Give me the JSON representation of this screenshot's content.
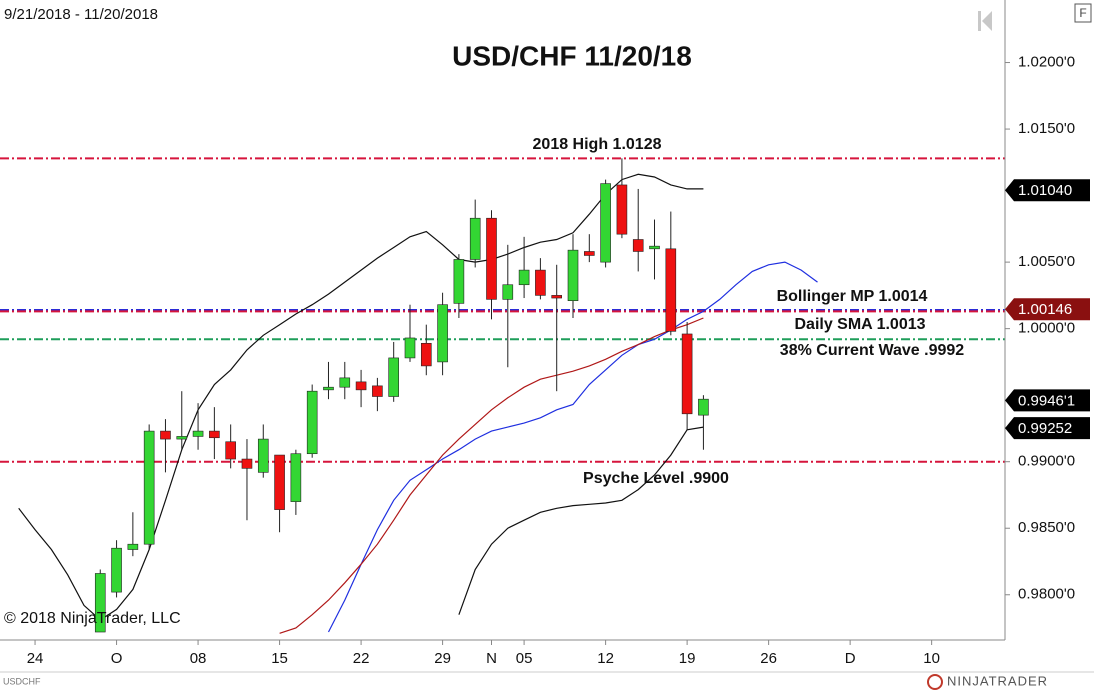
{
  "chart_data": {
    "type": "candlestick",
    "title": "USD/CHF 11/20/18",
    "date_range": "9/21/2018 - 11/20/2018",
    "copyright": "© 2018 NinjaTrader, LLC",
    "symbol": "USDCHF",
    "brand": "NINJATRADER",
    "button": "F",
    "xlim": [
      -2.15,
      59.5
    ],
    "ylim": [
      0.9766,
      1.0247
    ],
    "xticks": [
      {
        "value": 0,
        "label": "24"
      },
      {
        "value": 5,
        "label": "O"
      },
      {
        "value": 10,
        "label": "08"
      },
      {
        "value": 15,
        "label": "15"
      },
      {
        "value": 20,
        "label": "22"
      },
      {
        "value": 25,
        "label": "29"
      },
      {
        "value": 28,
        "label": "N"
      },
      {
        "value": 30,
        "label": "05"
      },
      {
        "value": 35,
        "label": "12"
      },
      {
        "value": 40,
        "label": "19"
      },
      {
        "value": 45,
        "label": "26"
      },
      {
        "value": 50,
        "label": "D"
      },
      {
        "value": 55,
        "label": "10"
      }
    ],
    "yticks": [
      {
        "value": 1.02,
        "label": "1.0200'0"
      },
      {
        "value": 1.015,
        "label": "1.0150'0"
      },
      {
        "value": 1.005,
        "label": "1.0050'0"
      },
      {
        "value": 1.0,
        "label": "1.0000'0"
      },
      {
        "value": 0.99,
        "label": "0.9900'0"
      },
      {
        "value": 0.985,
        "label": "0.9850'0"
      },
      {
        "value": 0.98,
        "label": "0.9800'0"
      }
    ],
    "up_color": "#33d633",
    "down_color": "#ee1111",
    "candles": {
      "x": [
        4,
        5,
        6,
        7,
        8,
        9,
        10,
        11,
        12,
        13,
        14,
        15,
        16,
        17,
        18,
        19,
        20,
        21,
        22,
        23,
        24,
        25,
        26,
        27,
        28,
        29,
        30,
        31,
        32,
        33,
        34,
        35,
        36,
        37,
        38,
        39,
        40,
        41
      ],
      "open": [
        0.9772,
        0.9802,
        0.9834,
        0.9838,
        0.9923,
        0.9917,
        0.9919,
        0.9923,
        0.9915,
        0.9902,
        0.9892,
        0.9905,
        0.987,
        0.9906,
        0.9954,
        0.9956,
        0.996,
        0.9957,
        0.9949,
        0.9978,
        0.9989,
        0.9975,
        1.0019,
        1.0052,
        1.0083,
        1.0022,
        1.0033,
        1.0044,
        1.0025,
        1.0021,
        1.0058,
        1.005,
        1.0108,
        1.0067,
        1.006,
        1.006,
        0.9996,
        0.9935
      ],
      "high": [
        0.9819,
        0.9841,
        0.9862,
        0.9928,
        0.9932,
        0.9953,
        0.9944,
        0.9941,
        0.9928,
        0.9917,
        0.9928,
        0.9905,
        0.9909,
        0.9958,
        0.9975,
        0.9975,
        0.9969,
        0.9963,
        0.999,
        1.0018,
        1.0003,
        1.0027,
        1.0056,
        1.0097,
        1.0089,
        1.0063,
        1.0069,
        1.0053,
        1.0048,
        1.0071,
        1.0071,
        1.0112,
        1.0128,
        1.0105,
        1.0082,
        1.0088,
        1.0005,
        0.995
      ],
      "low": [
        0.9772,
        0.9798,
        0.9829,
        0.9834,
        0.9892,
        0.9909,
        0.9909,
        0.9902,
        0.9895,
        0.9856,
        0.9888,
        0.9847,
        0.986,
        0.9903,
        0.9947,
        0.9947,
        0.9941,
        0.9938,
        0.9945,
        0.9975,
        0.9965,
        0.9965,
        1.0008,
        1.0046,
        1.0007,
        0.9971,
        1.0023,
        1.0022,
        0.9953,
        1.0008,
        1.005,
        1.0046,
        1.0068,
        1.0043,
        1.0037,
        0.9995,
        0.9924,
        0.9909
      ],
      "close": [
        0.9816,
        0.9835,
        0.9838,
        0.9923,
        0.9917,
        0.9919,
        0.9923,
        0.9918,
        0.9902,
        0.9895,
        0.9917,
        0.9864,
        0.9906,
        0.9953,
        0.9956,
        0.9963,
        0.9954,
        0.9949,
        0.9978,
        0.9993,
        0.9972,
        1.0018,
        1.0052,
        1.0083,
        1.0022,
        1.0033,
        1.0044,
        1.0025,
        1.0023,
        1.0059,
        1.0055,
        1.0109,
        1.0071,
        1.0058,
        1.0062,
        0.9998,
        0.9936,
        0.9947
      ]
    },
    "series": [
      {
        "color": "#111111",
        "x": [
          -1,
          0,
          1,
          2,
          3,
          4,
          5,
          6,
          7,
          8,
          9,
          10,
          11,
          12,
          13,
          14,
          15,
          16,
          17,
          18,
          19,
          20,
          21,
          22,
          23,
          24,
          25,
          26,
          27,
          28,
          29,
          30,
          31,
          32,
          33,
          34,
          35,
          36,
          37,
          38,
          39,
          40,
          41
        ],
        "values": [
          0.9865,
          0.9849,
          0.9834,
          0.9815,
          0.9792,
          0.9781,
          0.9789,
          0.9804,
          0.9834,
          0.9871,
          0.9909,
          0.9939,
          0.9958,
          0.9969,
          0.9984,
          0.9995,
          1.0003,
          1.0011,
          1.0018,
          1.0026,
          1.0035,
          1.0044,
          1.0053,
          1.0061,
          1.0069,
          1.0073,
          1.0063,
          1.0052,
          1.005,
          1.0052,
          1.0056,
          1.0061,
          1.0065,
          1.0067,
          1.0072,
          1.0086,
          1.0101,
          1.0112,
          1.0116,
          1.0114,
          1.0108,
          1.0105,
          1.0105
        ]
      },
      {
        "color": "#111111",
        "x": [
          26,
          27,
          28,
          29,
          30,
          31,
          32,
          33,
          34,
          35,
          36,
          37,
          38,
          39,
          40,
          41
        ],
        "values": [
          0.9785,
          0.9819,
          0.9838,
          0.985,
          0.9856,
          0.9862,
          0.9865,
          0.9867,
          0.9868,
          0.9869,
          0.9871,
          0.9879,
          0.989,
          0.9905,
          0.9924,
          0.9926
        ]
      },
      {
        "color": "#1f2fe0",
        "x": [
          18,
          19,
          20,
          21,
          22,
          23,
          24,
          25,
          26,
          27,
          28,
          29,
          30,
          31,
          32,
          33,
          34,
          35,
          36,
          37,
          38,
          39,
          40,
          41,
          42,
          43,
          44,
          45,
          46,
          47,
          48
        ],
        "values": [
          0.9772,
          0.9796,
          0.9823,
          0.9849,
          0.9871,
          0.9886,
          0.9894,
          0.9902,
          0.9909,
          0.9917,
          0.9923,
          0.9926,
          0.9929,
          0.9933,
          0.9939,
          0.9943,
          0.9958,
          0.9969,
          0.998,
          0.9988,
          0.9992,
          0.9999,
          1.0007,
          1.0013,
          1.0022,
          1.0033,
          1.0043,
          1.0048,
          1.005,
          1.0044,
          1.0035
        ]
      },
      {
        "color": "#b01818",
        "x": [
          15,
          16,
          17,
          18,
          19,
          20,
          21,
          22,
          23,
          24,
          25,
          26,
          27,
          28,
          29,
          30,
          31,
          32,
          33,
          34,
          35,
          36,
          37,
          38,
          39,
          40,
          41
        ],
        "values": [
          0.9771,
          0.9775,
          0.9785,
          0.9796,
          0.9809,
          0.9823,
          0.9838,
          0.9856,
          0.9875,
          0.989,
          0.9905,
          0.9917,
          0.9928,
          0.9939,
          0.9948,
          0.9956,
          0.9962,
          0.9965,
          0.9968,
          0.9972,
          0.9977,
          0.9983,
          0.9988,
          0.9994,
          0.9999,
          1.0003,
          1.0008
        ]
      }
    ],
    "levels": [
      {
        "value": 1.0128,
        "label": "2018 High 1.0128",
        "color": "#d6153c"
      },
      {
        "value": 1.0014,
        "label": "Bollinger MP 1.0014",
        "color": "#2b2bd6"
      },
      {
        "value": 1.0013,
        "label": "Daily SMA  1.0013",
        "color": "#d6153c"
      },
      {
        "value": 0.9992,
        "label": "38% Current Wave .9992",
        "color": "#1e9e5a"
      },
      {
        "value": 0.99,
        "label": "Psyche Level .9900",
        "color": "#d6153c"
      }
    ],
    "price_labels": [
      {
        "value": 1.0104,
        "label": "1.01040",
        "color": "#000000"
      },
      {
        "value": 1.00146,
        "label": "1.00146",
        "color": "#8a1010"
      },
      {
        "value": 0.99461,
        "label": "0.9946'1",
        "color": "#000000"
      },
      {
        "value": 0.99252,
        "label": "0.99252",
        "color": "#000000"
      }
    ]
  }
}
